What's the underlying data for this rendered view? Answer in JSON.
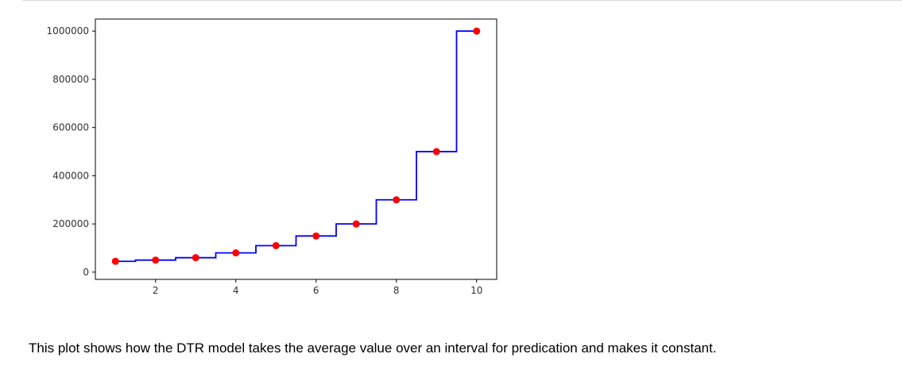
{
  "chart_data": {
    "type": "line",
    "title": "",
    "xlabel": "",
    "ylabel": "",
    "xlim": [
      0.5,
      10.5
    ],
    "ylim": [
      -30000,
      1050000
    ],
    "x_ticks": [
      2,
      4,
      6,
      8,
      10
    ],
    "y_ticks": [
      0,
      200000,
      400000,
      600000,
      800000,
      1000000
    ],
    "grid": false,
    "legend": "none",
    "series": [
      {
        "kind": "step",
        "color": "#0000ff",
        "x": [
          1,
          2,
          3,
          4,
          5,
          6,
          7,
          8,
          9,
          10
        ],
        "y": [
          45000,
          50000,
          60000,
          80000,
          110000,
          150000,
          200000,
          300000,
          500000,
          1000000
        ]
      },
      {
        "kind": "scatter",
        "color": "#ff0000",
        "x": [
          1,
          2,
          3,
          4,
          5,
          6,
          7,
          8,
          9,
          10
        ],
        "y": [
          45000,
          50000,
          60000,
          80000,
          110000,
          150000,
          200000,
          300000,
          500000,
          1000000
        ]
      }
    ]
  },
  "caption": "This plot shows how the DTR model takes the average value over an interval for predication and makes it constant."
}
